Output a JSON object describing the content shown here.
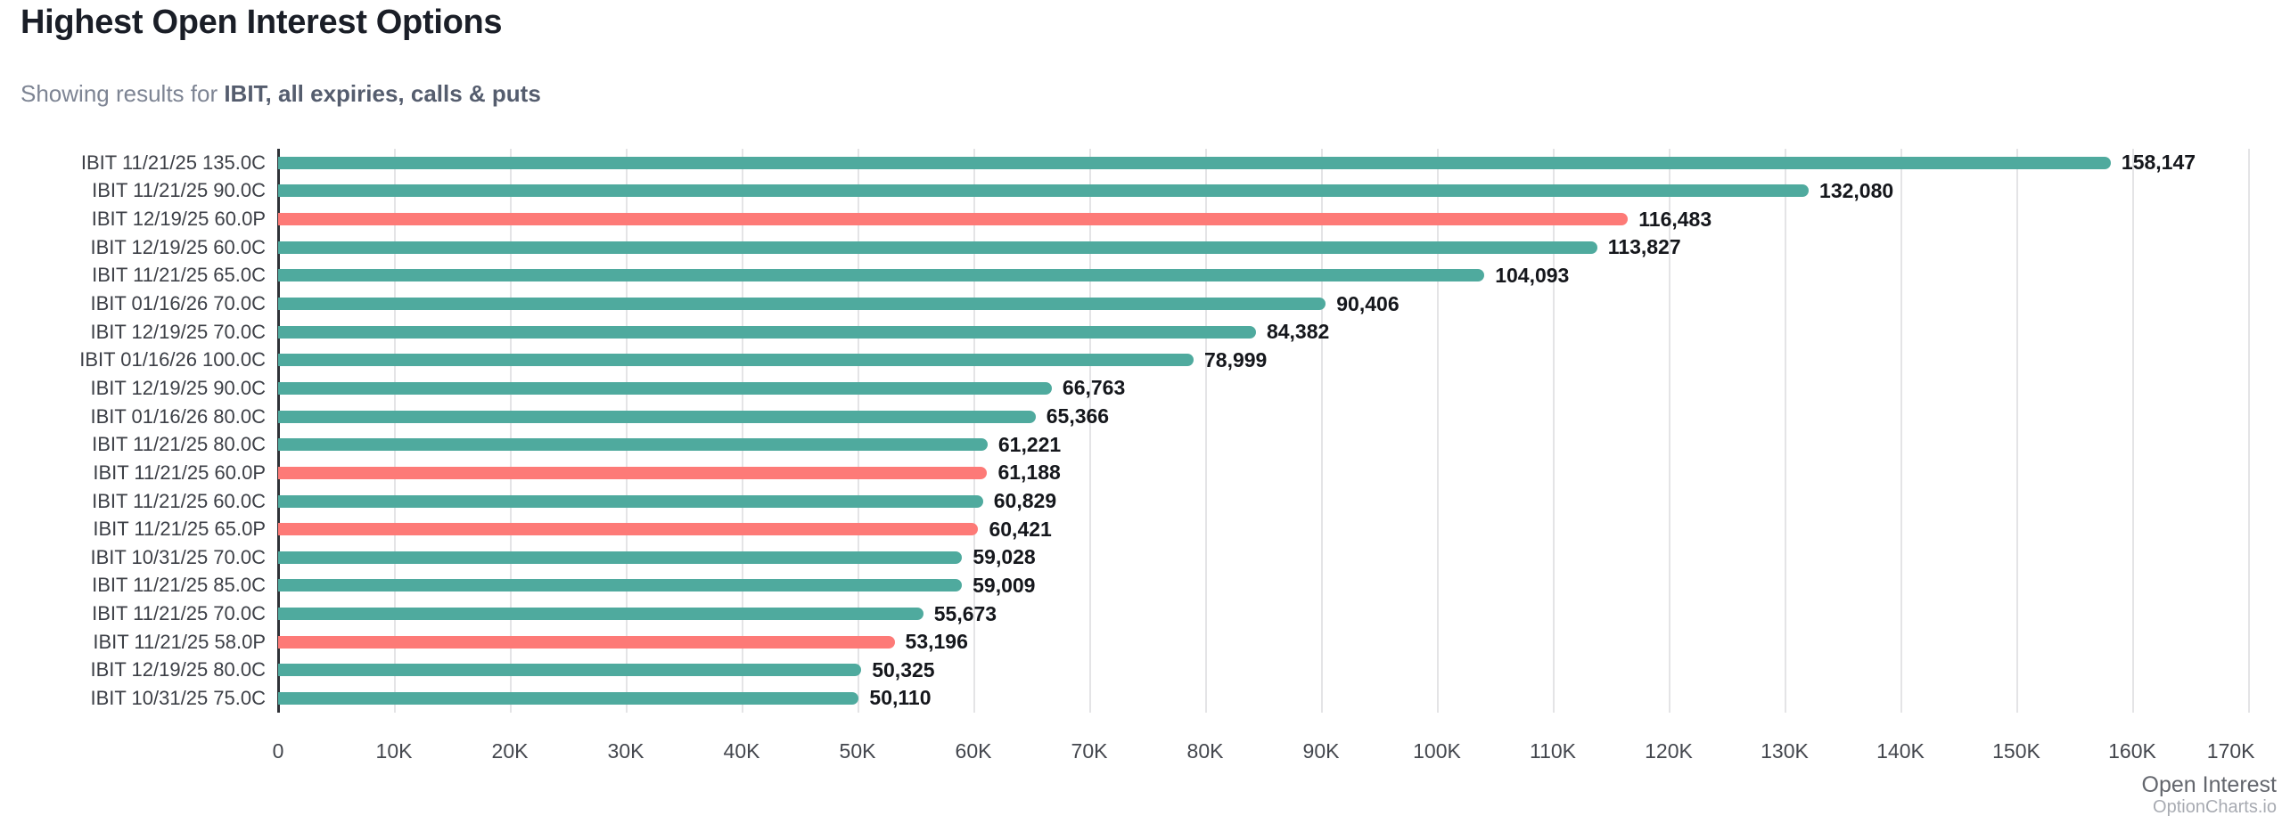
{
  "header": {
    "title": "Highest Open Interest Options",
    "subtitle_prefix": "Showing results for ",
    "subtitle_filter": "IBIT, all expiries, calls & puts"
  },
  "footer": {
    "axis_title": "Open Interest",
    "brand": "OptionCharts.io"
  },
  "colors": {
    "call_bar": "#4faa9e",
    "put_bar": "#fd7a77",
    "gridline": "#e4e4e6",
    "axis_line": "#2f3237",
    "title_text": "#1a1e27",
    "subtitle_text": "#7d8493",
    "subtitle_filter_text": "#555d6e",
    "category_text": "#3c3f46",
    "value_text": "#15171c",
    "tick_text": "#43464d",
    "axis_title_text": "#63666d",
    "brand_text": "#a8abb2"
  },
  "chart_data": {
    "type": "bar",
    "orientation": "horizontal",
    "title": "Highest Open Interest Options",
    "xlabel": "Open Interest",
    "ylabel": "",
    "xlim": [
      0,
      170000
    ],
    "grid": true,
    "legend": false,
    "x_ticks": [
      "0",
      "10K",
      "20K",
      "30K",
      "40K",
      "50K",
      "60K",
      "70K",
      "80K",
      "90K",
      "100K",
      "110K",
      "120K",
      "130K",
      "140K",
      "150K",
      "160K",
      "170K"
    ],
    "categories": [
      "IBIT 11/21/25 135.0C",
      "IBIT 11/21/25 90.0C",
      "IBIT 12/19/25 60.0P",
      "IBIT 12/19/25 60.0C",
      "IBIT 11/21/25 65.0C",
      "IBIT 01/16/26 70.0C",
      "IBIT 12/19/25 70.0C",
      "IBIT 01/16/26 100.0C",
      "IBIT 12/19/25 90.0C",
      "IBIT 01/16/26 80.0C",
      "IBIT 11/21/25 80.0C",
      "IBIT 11/21/25 60.0P",
      "IBIT 11/21/25 60.0C",
      "IBIT 11/21/25 65.0P",
      "IBIT 10/31/25 70.0C",
      "IBIT 11/21/25 85.0C",
      "IBIT 11/21/25 70.0C",
      "IBIT 11/21/25 58.0P",
      "IBIT 12/19/25 80.0C",
      "IBIT 10/31/25 75.0C"
    ],
    "values": [
      158147,
      132080,
      116483,
      113827,
      104093,
      90406,
      84382,
      78999,
      66763,
      65366,
      61221,
      61188,
      60829,
      60421,
      59028,
      59009,
      55673,
      53196,
      50325,
      50110
    ],
    "value_labels": [
      "158,147",
      "132,080",
      "116,483",
      "113,827",
      "104,093",
      "90,406",
      "84,382",
      "78,999",
      "66,763",
      "65,366",
      "61,221",
      "61,188",
      "60,829",
      "60,421",
      "59,028",
      "59,009",
      "55,673",
      "53,196",
      "50,325",
      "50,110"
    ],
    "option_types": [
      "call",
      "call",
      "put",
      "call",
      "call",
      "call",
      "call",
      "call",
      "call",
      "call",
      "call",
      "put",
      "call",
      "put",
      "call",
      "call",
      "call",
      "put",
      "call",
      "call"
    ]
  }
}
